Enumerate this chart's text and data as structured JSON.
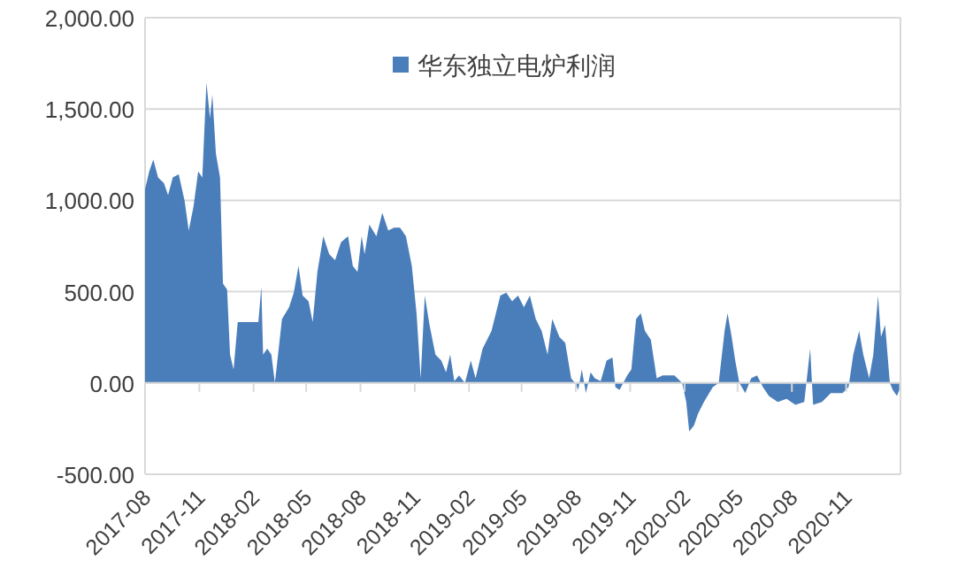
{
  "chart_data": {
    "type": "area",
    "legend": "top",
    "grid": "y",
    "xlim": [
      "2017-08-01",
      "2021-02-01"
    ],
    "xticks": [
      "2017-08",
      "2017-11",
      "2018-02",
      "2018-05",
      "2018-08",
      "2018-11",
      "2019-02",
      "2019-05",
      "2019-08",
      "2019-11",
      "2020-02",
      "2020-05",
      "2020-08",
      "2020-11"
    ],
    "ylim": [
      -500,
      2000
    ],
    "yticks": [
      {
        "value": -500,
        "label": "-500.00"
      },
      {
        "value": 0,
        "label": "0.00"
      },
      {
        "value": 500,
        "label": "500.00"
      },
      {
        "value": 1000,
        "label": "1,000.00"
      },
      {
        "value": 1500,
        "label": "1,500.00"
      },
      {
        "value": 2000,
        "label": "2,000.00"
      }
    ],
    "series": [
      {
        "name": "华东独立电炉利润",
        "color": "#4a7ebb",
        "x": [
          "2017-08-01",
          "2017-08-08",
          "2017-08-15",
          "2017-08-23",
          "2017-09-02",
          "2017-09-09",
          "2017-09-17",
          "2017-09-27",
          "2017-10-07",
          "2017-10-14",
          "2017-10-22",
          "2017-10-30",
          "2017-11-06",
          "2017-11-13",
          "2017-11-19",
          "2017-11-23",
          "2017-11-29",
          "2017-12-06",
          "2017-12-11",
          "2017-12-18",
          "2017-12-23",
          "2017-12-29",
          "2018-01-05",
          "2018-01-30",
          "2018-02-09",
          "2018-02-14",
          "2018-02-17",
          "2018-02-24",
          "2018-03-03",
          "2018-03-09",
          "2018-03-21",
          "2018-04-02",
          "2018-04-10",
          "2018-04-18",
          "2018-04-25",
          "2018-05-05",
          "2018-05-12",
          "2018-05-20",
          "2018-05-30",
          "2018-06-09",
          "2018-06-19",
          "2018-06-29",
          "2018-07-11",
          "2018-07-19",
          "2018-07-27",
          "2018-08-03",
          "2018-08-08",
          "2018-08-16",
          "2018-08-28",
          "2018-09-07",
          "2018-09-17",
          "2018-09-27",
          "2018-10-07",
          "2018-10-17",
          "2018-10-27",
          "2018-11-04",
          "2018-11-11",
          "2018-11-18",
          "2018-11-26",
          "2018-12-06",
          "2018-12-16",
          "2018-12-24",
          "2018-12-31",
          "2019-01-07",
          "2019-01-15",
          "2019-01-25",
          "2019-02-04",
          "2019-02-12",
          "2019-02-24",
          "2019-03-11",
          "2019-03-26",
          "2019-04-05",
          "2019-04-15",
          "2019-04-25",
          "2019-05-05",
          "2019-05-15",
          "2019-05-25",
          "2019-06-04",
          "2019-06-14",
          "2019-06-22",
          "2019-07-04",
          "2019-07-14",
          "2019-07-24",
          "2019-08-01",
          "2019-08-05",
          "2019-08-11",
          "2019-08-18",
          "2019-08-26",
          "2019-09-02",
          "2019-09-12",
          "2019-09-22",
          "2019-10-02",
          "2019-10-07",
          "2019-10-14",
          "2019-10-27",
          "2019-11-03",
          "2019-11-11",
          "2019-11-19",
          "2019-11-26",
          "2019-12-06",
          "2019-12-16",
          "2019-12-26",
          "2020-01-15",
          "2020-01-28",
          "2020-02-04",
          "2020-02-09",
          "2020-02-17",
          "2020-02-24",
          "2020-03-05",
          "2020-03-20",
          "2020-03-30",
          "2020-04-09",
          "2020-04-14",
          "2020-04-21",
          "2020-04-27",
          "2020-05-04",
          "2020-05-14",
          "2020-05-24",
          "2020-06-03",
          "2020-06-13",
          "2020-06-23",
          "2020-07-08",
          "2020-07-23",
          "2020-08-07",
          "2020-08-22",
          "2020-09-01",
          "2020-09-06",
          "2020-09-21",
          "2020-10-06",
          "2020-10-26",
          "2020-11-05",
          "2020-11-13",
          "2020-11-23",
          "2020-11-30",
          "2020-12-10",
          "2020-12-17",
          "2020-12-25",
          "2020-12-30",
          "2021-01-06",
          "2021-01-14",
          "2021-01-19",
          "2021-01-26",
          "2021-01-30"
        ],
        "values": [
          1061,
          1158,
          1223,
          1126,
          1094,
          1029,
          1126,
          1142,
          997,
          835,
          964,
          1158,
          1126,
          1644,
          1450,
          1579,
          1256,
          1126,
          544,
          511,
          155,
          74,
          333,
          333,
          333,
          527,
          155,
          188,
          155,
          0,
          350,
          414,
          495,
          641,
          479,
          447,
          333,
          608,
          803,
          705,
          673,
          770,
          803,
          641,
          608,
          803,
          705,
          867,
          803,
          932,
          835,
          851,
          851,
          803,
          641,
          382,
          26,
          479,
          317,
          155,
          123,
          58,
          155,
          10,
          42,
          0,
          123,
          26,
          188,
          285,
          479,
          495,
          447,
          479,
          414,
          479,
          350,
          285,
          155,
          350,
          252,
          220,
          26,
          -6,
          -39,
          74,
          -55,
          58,
          26,
          10,
          123,
          139,
          -23,
          -39,
          42,
          74,
          350,
          382,
          285,
          236,
          26,
          42,
          42,
          0,
          -104,
          -265,
          -233,
          -168,
          -104,
          -23,
          0,
          285,
          382,
          252,
          123,
          0,
          -55,
          26,
          42,
          -23,
          -71,
          -104,
          -87,
          -120,
          -104,
          188,
          -120,
          -104,
          -55,
          -55,
          -23,
          155,
          285,
          155,
          26,
          155,
          479,
          252,
          317,
          0,
          -39,
          -71,
          -39
        ]
      }
    ]
  }
}
